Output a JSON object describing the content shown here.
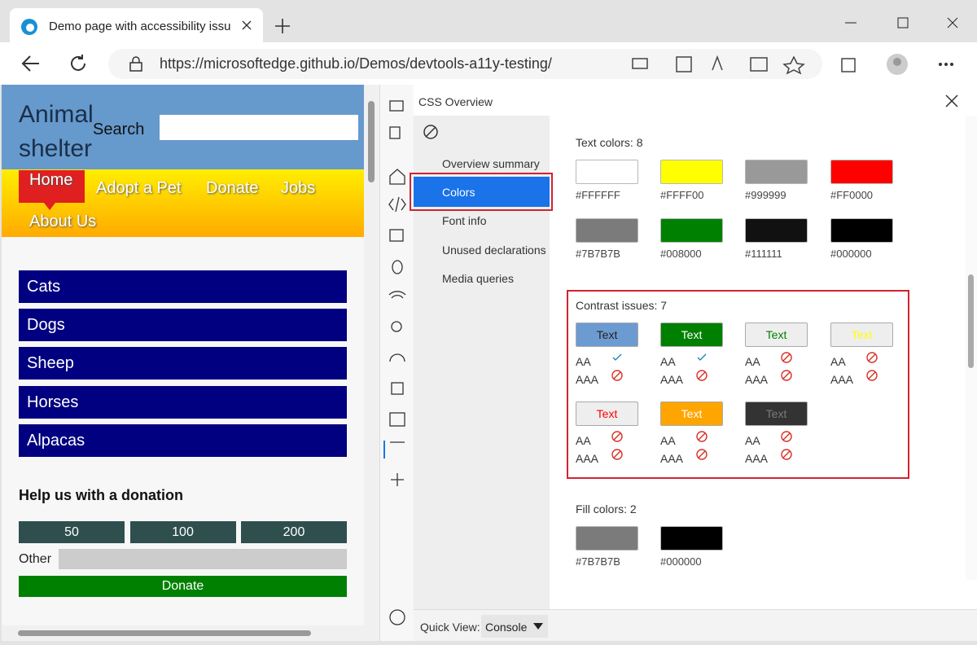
{
  "browser": {
    "tab_title": "Demo page with accessibility issu",
    "url": "https://microsoftedge.github.io/Demos/devtools-a11y-testing/"
  },
  "page": {
    "site_title": "Animal shelter",
    "search_label": "Search",
    "nav": [
      "Home",
      "Adopt a Pet",
      "Donate",
      "Jobs",
      "About Us"
    ],
    "animals": [
      "Cats",
      "Dogs",
      "Sheep",
      "Horses",
      "Alpacas"
    ],
    "donation": {
      "heading": "Help us with a donation",
      "amounts": [
        "50",
        "100",
        "200"
      ],
      "other_label": "Other",
      "button": "Donate"
    }
  },
  "devtools": {
    "panel_title": "CSS Overview",
    "sidebar": [
      "Overview summary",
      "Colors",
      "Font info",
      "Unused declarations",
      "Media queries"
    ],
    "text_colors": {
      "title": "Text colors: 8",
      "swatches": [
        "#FFFFFF",
        "#FFFF00",
        "#999999",
        "#FF0000",
        "#7B7B7B",
        "#008000",
        "#111111",
        "#000000"
      ]
    },
    "contrast": {
      "title": "Contrast issues: 7",
      "levels": [
        "AA",
        "AAA"
      ],
      "items": [
        {
          "label": "Text",
          "background": "#6C9BD2",
          "color": "#222222",
          "aa": true,
          "aaa": false
        },
        {
          "label": "Text",
          "background": "#008000",
          "color": "#FFFFFF",
          "aa": true,
          "aaa": false
        },
        {
          "label": "Text",
          "background": "#EEEEEE",
          "color": "#008000",
          "aa": false,
          "aaa": false
        },
        {
          "label": "Text",
          "background": "#EEEEEE",
          "color": "#FFFF00",
          "aa": false,
          "aaa": false
        },
        {
          "label": "Text",
          "background": "#EEEEEE",
          "color": "#FF0000",
          "aa": false,
          "aaa": false
        },
        {
          "label": "Text",
          "background": "#FFA500",
          "color": "#FFFFFF",
          "aa": false,
          "aaa": false
        },
        {
          "label": "Text",
          "background": "#333333",
          "color": "#7B7B7B",
          "aa": false,
          "aaa": false
        }
      ]
    },
    "fill_colors": {
      "title": "Fill colors: 2",
      "swatches": [
        "#7B7B7B",
        "#000000"
      ]
    },
    "quick_view": {
      "label": "Quick View:",
      "value": "Console"
    }
  }
}
